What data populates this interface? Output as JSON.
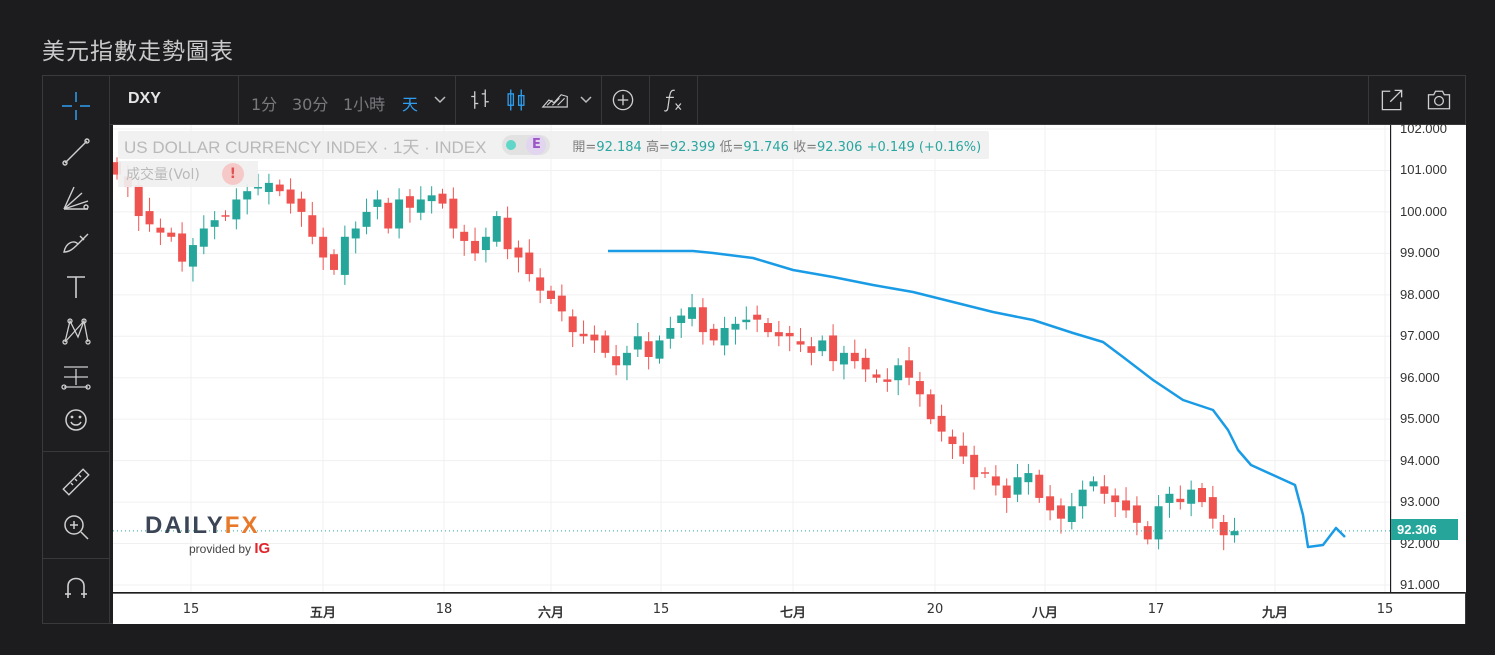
{
  "page": {
    "title": "美元指數走勢圖表"
  },
  "toolbar": {
    "symbol": "DXY",
    "timeframes": [
      "1分",
      "30分",
      "1小時",
      "天"
    ],
    "active_timeframe": "天"
  },
  "legend": {
    "name": "US DOLLAR CURRENCY INDEX · 1天 · INDEX",
    "badge_letter": "E",
    "open_label": "開=",
    "open": "92.184",
    "high_label": "高=",
    "high": "92.399",
    "low_label": "低=",
    "low": "91.746",
    "close_label": "收=",
    "close": "92.306",
    "change": "+0.149 (+0.16%)",
    "volume_label": "成交量(Vol)",
    "warning": "!"
  },
  "price_tag": "92.306",
  "yaxis": {
    "ticks": [
      "102.000",
      "101.000",
      "100.000",
      "99.000",
      "98.000",
      "97.000",
      "96.000",
      "95.000",
      "94.000",
      "93.000",
      "92.000",
      "91.000"
    ]
  },
  "xaxis": {
    "ticks": [
      {
        "label": "15",
        "bold": false
      },
      {
        "label": "五月",
        "bold": true
      },
      {
        "label": "18",
        "bold": false
      },
      {
        "label": "六月",
        "bold": true
      },
      {
        "label": "15",
        "bold": false
      },
      {
        "label": "七月",
        "bold": true
      },
      {
        "label": "20",
        "bold": false
      },
      {
        "label": "八月",
        "bold": true
      },
      {
        "label": "17",
        "bold": false
      },
      {
        "label": "九月",
        "bold": true
      },
      {
        "label": "15",
        "bold": false
      }
    ]
  },
  "logo": {
    "brand_a": "DAILY",
    "brand_b": "FX",
    "provided_by": "provided by ",
    "ig": "IG"
  },
  "colors": {
    "up": "#26a69a",
    "down": "#ef5350",
    "drawing": "#1a9be6",
    "accent": "#2f9ef0"
  },
  "chart_data": {
    "type": "candlestick",
    "symbol": "DXY",
    "ylim": [
      90.8,
      102.1
    ],
    "last_price": 92.306,
    "close_series": [
      100.9,
      100.6,
      99.9,
      99.7,
      99.5,
      99.4,
      98.8,
      99.2,
      99.6,
      99.8,
      99.9,
      100.3,
      100.5,
      100.6,
      100.7,
      100.5,
      100.2,
      100.0,
      99.4,
      98.9,
      98.6,
      99.4,
      99.6,
      100.0,
      100.3,
      99.6,
      100.3,
      100.1,
      100.3,
      100.4,
      100.2,
      99.6,
      99.3,
      99.0,
      99.4,
      99.9,
      99.1,
      98.9,
      98.5,
      98.1,
      97.9,
      97.6,
      97.1,
      97.0,
      96.9,
      96.6,
      96.3,
      96.6,
      97.0,
      96.5,
      96.9,
      97.2,
      97.5,
      97.7,
      97.1,
      96.9,
      97.2,
      97.3,
      97.4,
      97.4,
      97.1,
      97.0,
      97.0,
      96.8,
      96.6,
      96.9,
      96.4,
      96.6,
      96.4,
      96.2,
      96.0,
      95.9,
      96.3,
      96.0,
      95.6,
      95.0,
      94.7,
      94.4,
      94.1,
      93.6,
      93.7,
      93.4,
      93.1,
      93.6,
      93.7,
      93.1,
      92.8,
      92.6,
      92.9,
      93.3,
      93.5,
      93.2,
      93.0,
      92.8,
      92.5,
      92.1,
      92.9,
      93.2,
      93.0,
      93.3,
      93.0,
      92.6,
      92.2,
      92.3
    ]
  }
}
